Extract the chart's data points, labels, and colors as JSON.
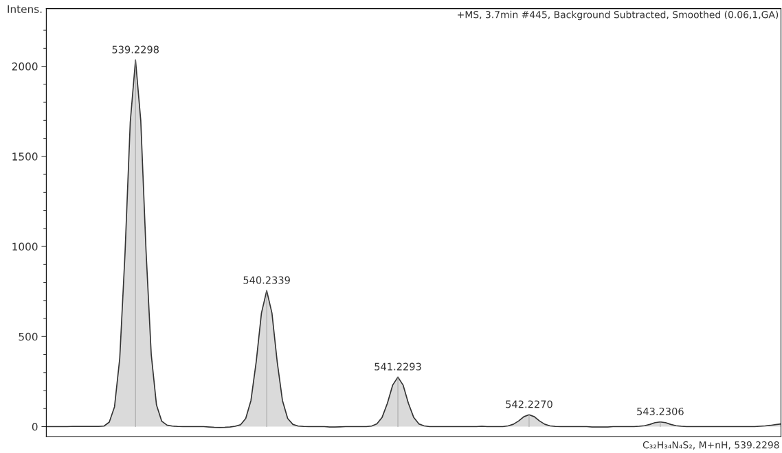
{
  "chart_data": {
    "type": "area",
    "ylabel": "Intens.",
    "ylim": [
      -55,
      2320
    ],
    "yticks": [
      0,
      {
        "value": 100,
        "label": null
      },
      {
        "value": 200,
        "label": null
      },
      {
        "value": 300,
        "label": null
      },
      {
        "value": 400,
        "label": null
      },
      500,
      {
        "value": 600,
        "label": null
      },
      {
        "value": 700,
        "label": null
      },
      {
        "value": 800,
        "label": null
      },
      {
        "value": 900,
        "label": null
      },
      1000,
      {
        "value": 1100,
        "label": null
      },
      {
        "value": 1200,
        "label": null
      },
      {
        "value": 1300,
        "label": null
      },
      {
        "value": 1400,
        "label": null
      },
      1500,
      {
        "value": 1600,
        "label": null
      },
      {
        "value": 1700,
        "label": null
      },
      {
        "value": 1800,
        "label": null
      },
      {
        "value": 1900,
        "label": null
      },
      2000,
      {
        "value": 2100,
        "label": null
      },
      {
        "value": 2200,
        "label": null
      }
    ],
    "tick_labels": "y",
    "grid": false,
    "categories": [
      null,
      null,
      null,
      null,
      null,
      null,
      null,
      null,
      null,
      null,
      null,
      null,
      null,
      null,
      null,
      null,
      null,
      null,
      null,
      null,
      null,
      null,
      null,
      null,
      null,
      null,
      null,
      null,
      null,
      null,
      null,
      null,
      null,
      null,
      null,
      null,
      null,
      null,
      null,
      null,
      null,
      null,
      null,
      null,
      null,
      null,
      null,
      null,
      null,
      null,
      null,
      null,
      null,
      null,
      null,
      null,
      null,
      null,
      null,
      null,
      null,
      null,
      null,
      null,
      null,
      null,
      null,
      null,
      null,
      null,
      null,
      null,
      null,
      null,
      null,
      null,
      null,
      null,
      null,
      null,
      null,
      null,
      null,
      null,
      null,
      null,
      null,
      null,
      null,
      null,
      null,
      null,
      null,
      null,
      null,
      null,
      null,
      null,
      null,
      null,
      null,
      null,
      null,
      null,
      null,
      null,
      null,
      null,
      null,
      null,
      null,
      null,
      null,
      null,
      null,
      null,
      null,
      null,
      null,
      null,
      null,
      null,
      null,
      null,
      null,
      null,
      null,
      null,
      null,
      null,
      null,
      null,
      null,
      null,
      null,
      null,
      null,
      null,
      null,
      null,
      null
    ],
    "series": [
      {
        "color": "#333333",
        "values": [
          0,
          0,
          0,
          0,
          0,
          1,
          1,
          1,
          1,
          1,
          1,
          3,
          25,
          110,
          380,
          960,
          1690,
          2035,
          1700,
          980,
          400,
          120,
          30,
          8,
          3,
          1,
          0,
          0,
          0,
          0,
          0,
          -2,
          -4,
          -5,
          -4,
          -2,
          2,
          10,
          45,
          145,
          360,
          630,
          755,
          630,
          360,
          145,
          45,
          12,
          3,
          1,
          0,
          0,
          0,
          0,
          -2,
          -2,
          -1,
          0,
          0,
          0,
          0,
          0,
          3,
          15,
          52,
          130,
          230,
          275,
          230,
          130,
          52,
          15,
          4,
          0,
          0,
          0,
          0,
          0,
          0,
          0,
          0,
          0,
          0,
          2,
          0,
          0,
          0,
          0,
          4,
          13,
          31,
          55,
          66,
          55,
          31,
          13,
          4,
          1,
          0,
          0,
          0,
          0,
          0,
          0,
          -2,
          -2,
          -2,
          -2,
          0,
          0,
          0,
          0,
          0,
          2,
          5,
          12,
          22,
          26,
          22,
          12,
          5,
          2,
          0,
          0,
          0,
          0,
          0,
          0,
          0,
          0,
          0,
          0,
          0,
          0,
          0,
          0,
          2,
          4,
          7,
          11,
          15
        ]
      }
    ],
    "annotations": [
      {
        "text": "539.2298",
        "y": 2035
      },
      {
        "text": "540.2339",
        "y": 755
      },
      {
        "text": "541.2293",
        "y": 275
      },
      {
        "text": "542.2270",
        "y": 66
      },
      {
        "text": "543.2306",
        "y": 26
      },
      "+MS, 3.7min #445, Background Subtracted, Smoothed (0.06,1,GA)",
      "C₃₂H₃₄N₄S₂, M+nH, 539.2298"
    ]
  }
}
